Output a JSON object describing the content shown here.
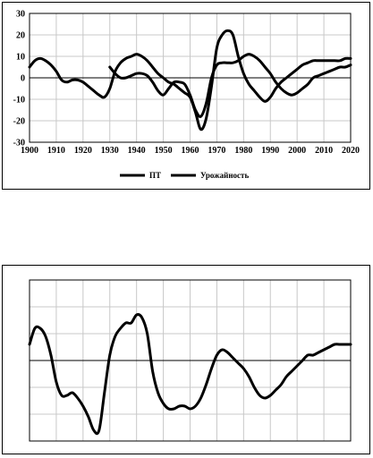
{
  "chart_data": [
    {
      "type": "line",
      "xlim": [
        1900,
        2020
      ],
      "ylim": [
        -30,
        30
      ],
      "x_ticks": [
        "1900",
        "1910",
        "1920",
        "1930",
        "1940",
        "1950",
        "1960",
        "1970",
        "1980",
        "1990",
        "2000",
        "2010",
        "2020"
      ],
      "y_ticks": [
        "30",
        "20",
        "10",
        "0",
        "-10",
        "-20",
        "-30"
      ],
      "grid": true,
      "legend_position": "bottom",
      "series": [
        {
          "name": "ПТ",
          "x": [
            1900,
            1902,
            1904,
            1906,
            1908,
            1910,
            1912,
            1914,
            1916,
            1918,
            1920,
            1922,
            1924,
            1926,
            1928,
            1930,
            1932,
            1934,
            1936,
            1938,
            1940,
            1942,
            1944,
            1946,
            1948,
            1950,
            1952,
            1954,
            1956,
            1958,
            1960,
            1962,
            1964,
            1966,
            1968,
            1970,
            1972,
            1974,
            1976,
            1978,
            1980,
            1982,
            1984,
            1986,
            1988,
            1990,
            1992,
            1994,
            1996,
            1998,
            2000,
            2002,
            2004,
            2006,
            2008,
            2010,
            2012,
            2014,
            2016,
            2018,
            2020
          ],
          "values": [
            5,
            8,
            9,
            8,
            6,
            3,
            -1,
            -2,
            -1,
            -1,
            -2,
            -4,
            -6,
            -8,
            -9,
            -5,
            3,
            7,
            9,
            10,
            11,
            10,
            8,
            5,
            2,
            0,
            -2,
            -3,
            -5,
            -7,
            -9,
            -16,
            -24,
            -19,
            -4,
            14,
            20,
            22,
            20,
            10,
            2,
            -3,
            -6,
            -9,
            -11,
            -9,
            -5,
            -2,
            0,
            2,
            4,
            6,
            7,
            8,
            8,
            8,
            8,
            8,
            8,
            9,
            9
          ]
        },
        {
          "name": "Урожайность",
          "x": [
            1930,
            1932,
            1934,
            1936,
            1938,
            1940,
            1942,
            1944,
            1946,
            1948,
            1950,
            1952,
            1954,
            1956,
            1958,
            1960,
            1962,
            1964,
            1966,
            1968,
            1970,
            1972,
            1974,
            1976,
            1978,
            1980,
            1982,
            1984,
            1986,
            1988,
            1990,
            1992,
            1994,
            1996,
            1998,
            2000,
            2002,
            2004,
            2006,
            2008,
            2010,
            2012,
            2014,
            2016,
            2018,
            2020
          ],
          "values": [
            5,
            2,
            0,
            0,
            1,
            2,
            2,
            1,
            -2,
            -6,
            -8,
            -5,
            -2,
            -2,
            -3,
            -8,
            -15,
            -18,
            -12,
            0,
            6,
            7,
            7,
            7,
            8,
            10,
            11,
            10,
            8,
            5,
            2,
            -2,
            -5,
            -7,
            -8,
            -7,
            -5,
            -3,
            0,
            1,
            2,
            3,
            4,
            5,
            5,
            6
          ]
        }
      ]
    },
    {
      "type": "line",
      "xlim": [
        1900,
        2020
      ],
      "ylim": [
        -30,
        30
      ],
      "grid": true,
      "series": [
        {
          "x": [
            1900,
            1902,
            1904,
            1906,
            1908,
            1910,
            1912,
            1914,
            1916,
            1918,
            1920,
            1922,
            1924,
            1926,
            1928,
            1930,
            1932,
            1934,
            1936,
            1938,
            1940,
            1942,
            1944,
            1946,
            1948,
            1950,
            1952,
            1954,
            1956,
            1958,
            1960,
            1962,
            1964,
            1966,
            1968,
            1970,
            1972,
            1974,
            1976,
            1978,
            1980,
            1982,
            1984,
            1986,
            1988,
            1990,
            1992,
            1994,
            1996,
            1998,
            2000,
            2002,
            2004,
            2006,
            2008,
            2010,
            2012,
            2014,
            2016,
            2018,
            2020
          ],
          "values": [
            6,
            12,
            12,
            9,
            2,
            -8,
            -13,
            -13,
            -12,
            -14,
            -17,
            -21,
            -26,
            -26,
            -12,
            2,
            9,
            12,
            14,
            14,
            17,
            16,
            10,
            -4,
            -12,
            -16,
            -18,
            -18,
            -17,
            -17,
            -18,
            -17,
            -14,
            -9,
            -3,
            2,
            4,
            3,
            1,
            -1,
            -3,
            -6,
            -10,
            -13,
            -14,
            -13,
            -11,
            -9,
            -6,
            -4,
            -2,
            0,
            2,
            2,
            3,
            4,
            5,
            6,
            6,
            6,
            6
          ]
        }
      ]
    }
  ],
  "legend": {
    "items": [
      {
        "label": "ПТ",
        "color": "#000000"
      },
      {
        "label": "Урожайность",
        "color": "#000000"
      }
    ]
  },
  "colors": {
    "line": "#000000",
    "grid": "#c8c8c8",
    "axis": "#000000"
  }
}
